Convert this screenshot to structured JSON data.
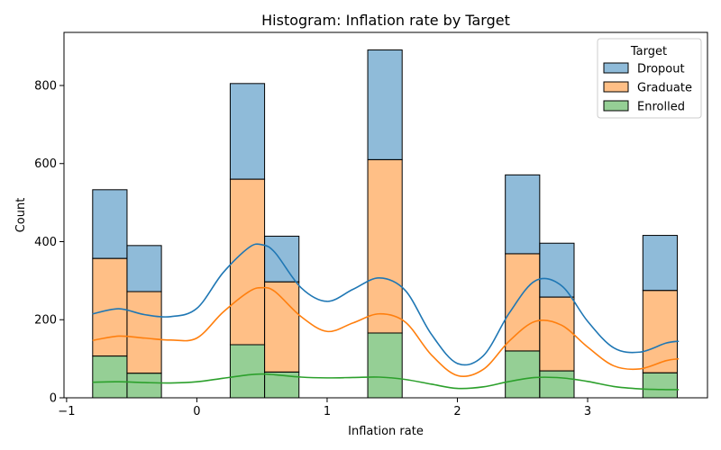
{
  "chart_data": {
    "type": "bar",
    "stacked": true,
    "title": "Histogram: Inflation rate by Target",
    "xlabel": "Inflation rate",
    "ylabel": "Count",
    "xlim": [
      -1.02,
      3.92
    ],
    "ylim": [
      0,
      936
    ],
    "xticks": [
      -1,
      0,
      1,
      2,
      3
    ],
    "yticks": [
      0,
      200,
      400,
      600,
      800
    ],
    "bin_width": 0.264,
    "bins": [
      {
        "x0": -0.8,
        "x1": -0.536
      },
      {
        "x0": -0.536,
        "x1": -0.272
      },
      {
        "x0": 0.256,
        "x1": 0.52
      },
      {
        "x0": 0.52,
        "x1": 0.784
      },
      {
        "x0": 1.312,
        "x1": 1.576
      },
      {
        "x0": 2.368,
        "x1": 2.632
      },
      {
        "x0": 2.632,
        "x1": 2.896
      },
      {
        "x0": 3.424,
        "x1": 3.688
      }
    ],
    "series": [
      {
        "name": "Enrolled",
        "color": "#2ca02c",
        "values": [
          107,
          63,
          136,
          66,
          166,
          120,
          69,
          64
        ]
      },
      {
        "name": "Graduate",
        "color": "#ff7f0e",
        "values": [
          250,
          209,
          424,
          231,
          444,
          249,
          189,
          211
        ]
      },
      {
        "name": "Dropout",
        "color": "#1f77b4",
        "values": [
          176,
          118,
          245,
          117,
          281,
          202,
          138,
          141
        ]
      }
    ],
    "kde": [
      {
        "name": "Dropout",
        "color": "#1f77b4",
        "x": [
          -0.8,
          -0.6,
          -0.4,
          -0.2,
          0,
          0.2,
          0.4,
          0.5,
          0.6,
          0.8,
          1.0,
          1.2,
          1.4,
          1.6,
          1.8,
          2.0,
          2.2,
          2.4,
          2.6,
          2.8,
          3.0,
          3.2,
          3.4,
          3.6,
          3.7
        ],
        "y": [
          215,
          228,
          213,
          208,
          229,
          320,
          385,
          392,
          372,
          282,
          247,
          278,
          307,
          275,
          163,
          88,
          108,
          218,
          300,
          287,
          196,
          128,
          117,
          140,
          145
        ]
      },
      {
        "name": "Graduate",
        "color": "#ff7f0e",
        "x": [
          -0.8,
          -0.6,
          -0.4,
          -0.2,
          0,
          0.2,
          0.4,
          0.5,
          0.6,
          0.8,
          1.0,
          1.2,
          1.4,
          1.6,
          1.8,
          2.0,
          2.2,
          2.4,
          2.6,
          2.8,
          3.0,
          3.2,
          3.4,
          3.6,
          3.7
        ],
        "y": [
          147,
          158,
          153,
          148,
          153,
          219,
          272,
          282,
          272,
          208,
          170,
          192,
          215,
          194,
          110,
          57,
          73,
          146,
          196,
          186,
          130,
          82,
          74,
          95,
          100
        ]
      },
      {
        "name": "Enrolled",
        "color": "#2ca02c",
        "x": [
          -0.8,
          -0.6,
          -0.4,
          -0.2,
          0,
          0.2,
          0.4,
          0.5,
          0.6,
          0.8,
          1.0,
          1.2,
          1.4,
          1.6,
          1.8,
          2.0,
          2.2,
          2.4,
          2.6,
          2.8,
          3.0,
          3.2,
          3.4,
          3.6,
          3.7
        ],
        "y": [
          40,
          41,
          39,
          38,
          41,
          50,
          59,
          61,
          59,
          53,
          51,
          52,
          53,
          47,
          35,
          24,
          28,
          42,
          52,
          51,
          42,
          29,
          23,
          21,
          21
        ]
      }
    ],
    "legend": {
      "title": "Target",
      "placement": "top-right",
      "entries": [
        "Dropout",
        "Graduate",
        "Enrolled"
      ]
    },
    "grid": false
  }
}
